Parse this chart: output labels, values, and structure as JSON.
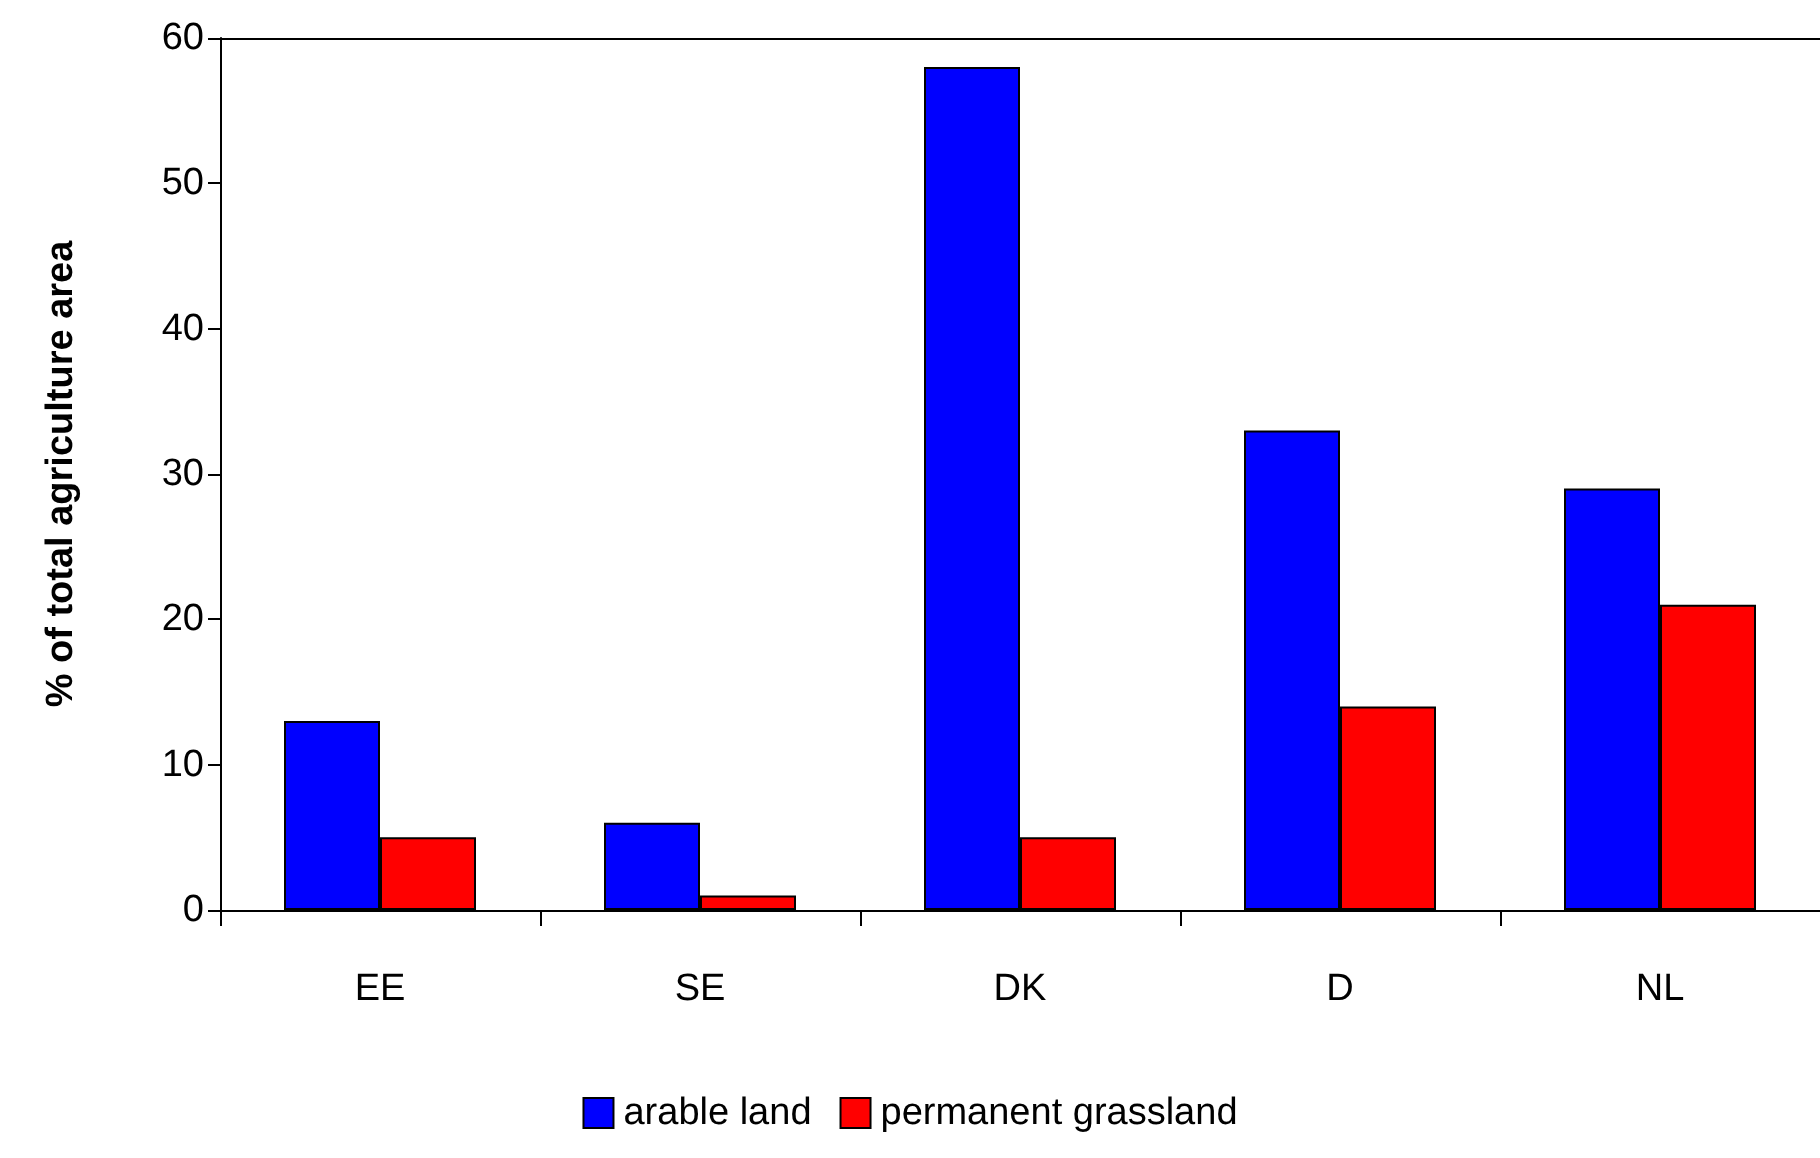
{
  "chart_data": {
    "type": "bar",
    "ylabel": "% of total agriculture area",
    "categories": [
      "EE",
      "SE",
      "DK",
      "D",
      "NL"
    ],
    "series": [
      {
        "name": "arable land",
        "color": "#0000ff",
        "values": [
          13,
          6,
          58,
          33,
          29
        ]
      },
      {
        "name": "permanent grassland",
        "color": "#ff0000",
        "values": [
          5,
          1,
          5,
          14,
          21
        ]
      }
    ],
    "ylim": [
      0,
      60
    ],
    "yticks": [
      0,
      10,
      20,
      30,
      40,
      50,
      60
    ],
    "grid": false,
    "legend": "bottom"
  }
}
